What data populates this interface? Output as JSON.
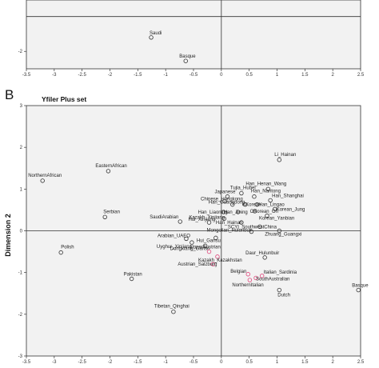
{
  "colors": {
    "plot_bg": "#f2f2f2",
    "point_default": "#333333",
    "point_highlight": "#e0457b"
  },
  "chart_data": [
    {
      "type": "scatter",
      "panel": "A",
      "title": "",
      "xlabel": "",
      "ylabel": "",
      "xlim": [
        -3.5,
        2.5
      ],
      "ylim": [
        -3,
        0.95
      ],
      "xticks": [
        "-3.5",
        "-3",
        "-2.5",
        "-2",
        "-1.5",
        "-1",
        "-0.5",
        "0",
        "0.5",
        "1",
        "1.5",
        "2",
        "2.5"
      ],
      "yticks": [
        "-2"
      ],
      "points": [
        {
          "label": "Saudi",
          "x": -1.26,
          "y": -1.2,
          "highlight": false
        },
        {
          "label": "Basque",
          "x": -0.64,
          "y": -2.55,
          "highlight": false
        }
      ]
    },
    {
      "type": "scatter",
      "panel": "B",
      "title": "Yfiler Plus set",
      "xlabel": "",
      "ylabel": "Dimension 2",
      "xlim": [
        -3.5,
        2.5
      ],
      "ylim": [
        -3,
        3
      ],
      "xticks": [
        "-3.5",
        "-3",
        "-2.5",
        "-2",
        "-1.5",
        "-1",
        "-0.5",
        "0",
        "0.5",
        "1",
        "1.5",
        "2",
        "2.5"
      ],
      "yticks": [
        "-3",
        "-2",
        "-1",
        "0",
        "1",
        "2",
        "3"
      ],
      "points": [
        {
          "label": "Li_Hainan",
          "x": 1.04,
          "y": 1.7,
          "highlight": false
        },
        {
          "label": "Han_Henan_Wang",
          "x": 0.84,
          "y": 1.0,
          "highlight": false
        },
        {
          "label": "EasternAfrican",
          "x": -2.03,
          "y": 1.43,
          "highlight": false
        },
        {
          "label": "NorthernAfrican",
          "x": -3.21,
          "y": 1.2,
          "highlight": false
        },
        {
          "label": "Tujia_Hubei",
          "x": 0.36,
          "y": 0.9,
          "highlight": false
        },
        {
          "label": "Japanese",
          "x": 0.11,
          "y": 0.82,
          "highlight": false
        },
        {
          "label": "Han_Nantong",
          "x": 0.59,
          "y": 0.82,
          "highlight": false
        },
        {
          "label": "Han_Shanghai",
          "x": 0.88,
          "y": 0.73,
          "highlight": false
        },
        {
          "label": "Chinese_Hongkong",
          "x": 0.06,
          "y": 0.71,
          "highlight": false
        },
        {
          "label": "Han_Guangdong",
          "x": 0.2,
          "y": 0.63,
          "highlight": false
        },
        {
          "label": "CKorean",
          "x": 0.43,
          "y": 0.63,
          "highlight": false
        },
        {
          "label": "Han_Lingao",
          "x": 0.64,
          "y": 0.63,
          "highlight": false
        },
        {
          "label": "Han_Liaoning",
          "x": 0.04,
          "y": 0.45,
          "highlight": false
        },
        {
          "label": "Han_Jining",
          "x": 0.3,
          "y": 0.45,
          "highlight": false
        },
        {
          "label": "OKorean_Oh",
          "x": 0.6,
          "y": 0.47,
          "highlight": false
        },
        {
          "label": "Korean_Jung",
          "x": 0.96,
          "y": 0.52,
          "highlight": false
        },
        {
          "label": "Serbian",
          "x": -2.09,
          "y": 0.33,
          "highlight": false
        },
        {
          "label": "Kazakh_Xinjiang",
          "x": 0.05,
          "y": 0.29,
          "highlight": false
        },
        {
          "label": "Korean_Yanbian",
          "x": 0.82,
          "y": 0.36,
          "highlight": false
        },
        {
          "label": "SaudiArabian",
          "x": -0.74,
          "y": 0.22,
          "highlight": false
        },
        {
          "label": "Hui_Xinjiang",
          "x": -0.22,
          "y": 0.2,
          "highlight": false
        },
        {
          "label": "Han_Hainan",
          "x": 0.36,
          "y": 0.2,
          "highlight": false
        },
        {
          "label": "SCYI_SouthwestChina",
          "x": 0.69,
          "y": 0.1,
          "highlight": false
        },
        {
          "label": "Mongolian_Hulunbuir",
          "x": 0.54,
          "y": -0.02,
          "highlight": false
        },
        {
          "label": "Zhuang_Guangxi",
          "x": 1.04,
          "y": 0.0,
          "highlight": false
        },
        {
          "label": "Arabian_UAEO",
          "x": -0.63,
          "y": -0.19,
          "highlight": false
        },
        {
          "label": "Hui_Gansu",
          "x": -0.1,
          "y": -0.17,
          "highlight": false
        },
        {
          "label": "Uyghur_Xinjiang",
          "x": -0.53,
          "y": -0.28,
          "highlight": false
        },
        {
          "label": "Dongxiang_Gansu",
          "x": -0.29,
          "y": -0.36,
          "highlight": false
        },
        {
          "label": "Polish",
          "x": -2.88,
          "y": -0.52,
          "highlight": false
        },
        {
          "label": "UpperAustrian",
          "x": -0.22,
          "y": -0.5,
          "highlight": true
        },
        {
          "label": "Kazakh_Kazakhstan",
          "x": -0.07,
          "y": -0.62,
          "highlight": true
        },
        {
          "label": "Daur_Hulunbuir",
          "x": 0.78,
          "y": -0.64,
          "highlight": false
        },
        {
          "label": "Austrian_Salzburg",
          "x": -0.15,
          "y": -0.8,
          "highlight": true
        },
        {
          "label": "Belgian",
          "x": 0.48,
          "y": -1.04,
          "highlight": true
        },
        {
          "label": "Italian_Sardinia",
          "x": 0.73,
          "y": -1.08,
          "highlight": true
        },
        {
          "label": "SouthAustralian",
          "x": 0.62,
          "y": -1.13,
          "highlight": true
        },
        {
          "label": "Pakistan",
          "x": -1.61,
          "y": -1.15,
          "highlight": false
        },
        {
          "label": "NorthernItalian",
          "x": 0.51,
          "y": -1.18,
          "highlight": true
        },
        {
          "label": "Dutch",
          "x": 1.04,
          "y": -1.42,
          "highlight": false
        },
        {
          "label": "Basque",
          "x": 2.46,
          "y": -1.42,
          "highlight": false
        },
        {
          "label": "Tibetan_Qinghai",
          "x": -0.86,
          "y": -1.94,
          "highlight": false
        }
      ]
    }
  ],
  "panels": {
    "b_letter": "B"
  }
}
